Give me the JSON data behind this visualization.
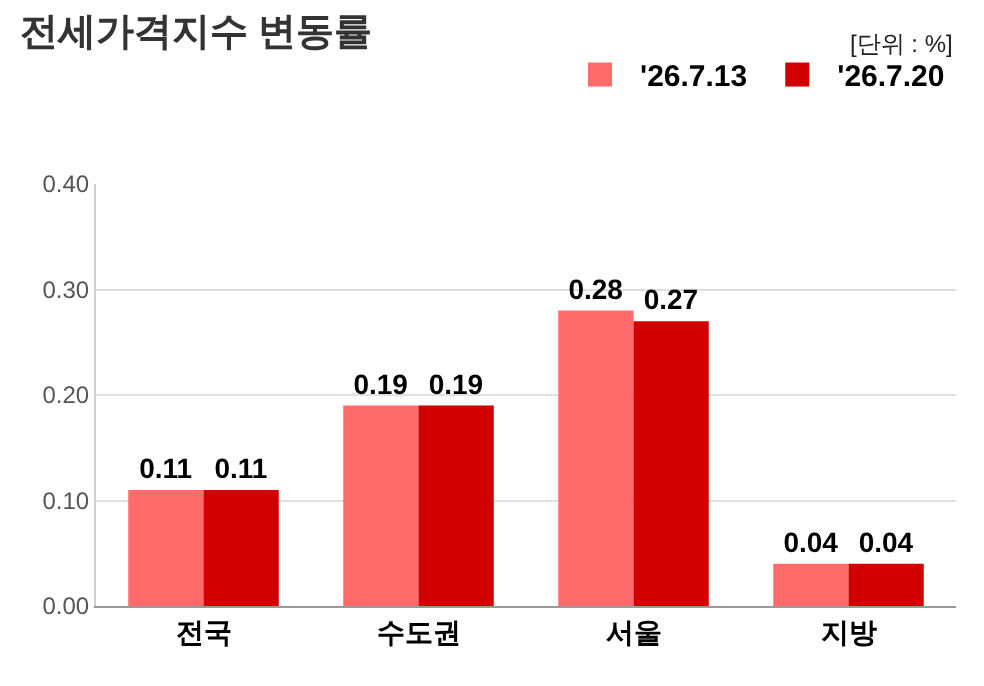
{
  "chart_data": {
    "type": "bar",
    "title": "전세가격지수 변동률",
    "annotations": [
      "[단위 : %]"
    ],
    "categories": [
      "전국",
      "수도권",
      "서울",
      "지방"
    ],
    "series": [
      {
        "name": "'26.7.13",
        "color": "#ff6b6b",
        "values": [
          0.11,
          0.19,
          0.28,
          0.04
        ]
      },
      {
        "name": "'26.7.20",
        "color": "#d20000",
        "values": [
          0.11,
          0.19,
          0.27,
          0.04
        ]
      }
    ],
    "ylim": [
      0,
      0.4
    ],
    "yticks": [
      "0.00",
      "0.10",
      "0.20",
      "0.30",
      "0.40"
    ],
    "grid": "y",
    "legend": "top right",
    "data_labels": true
  }
}
